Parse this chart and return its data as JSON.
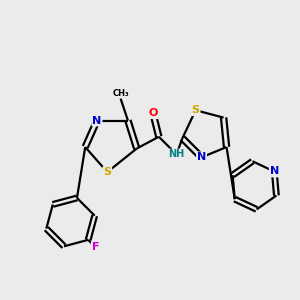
{
  "background_color": "#ebebeb",
  "bond_color": "#000000",
  "bond_lw": 1.6,
  "atom_colors": {
    "N": "#0000cc",
    "S": "#ccaa00",
    "O": "#ff0000",
    "F": "#cc00cc",
    "C": "#000000",
    "H": "#008080"
  }
}
